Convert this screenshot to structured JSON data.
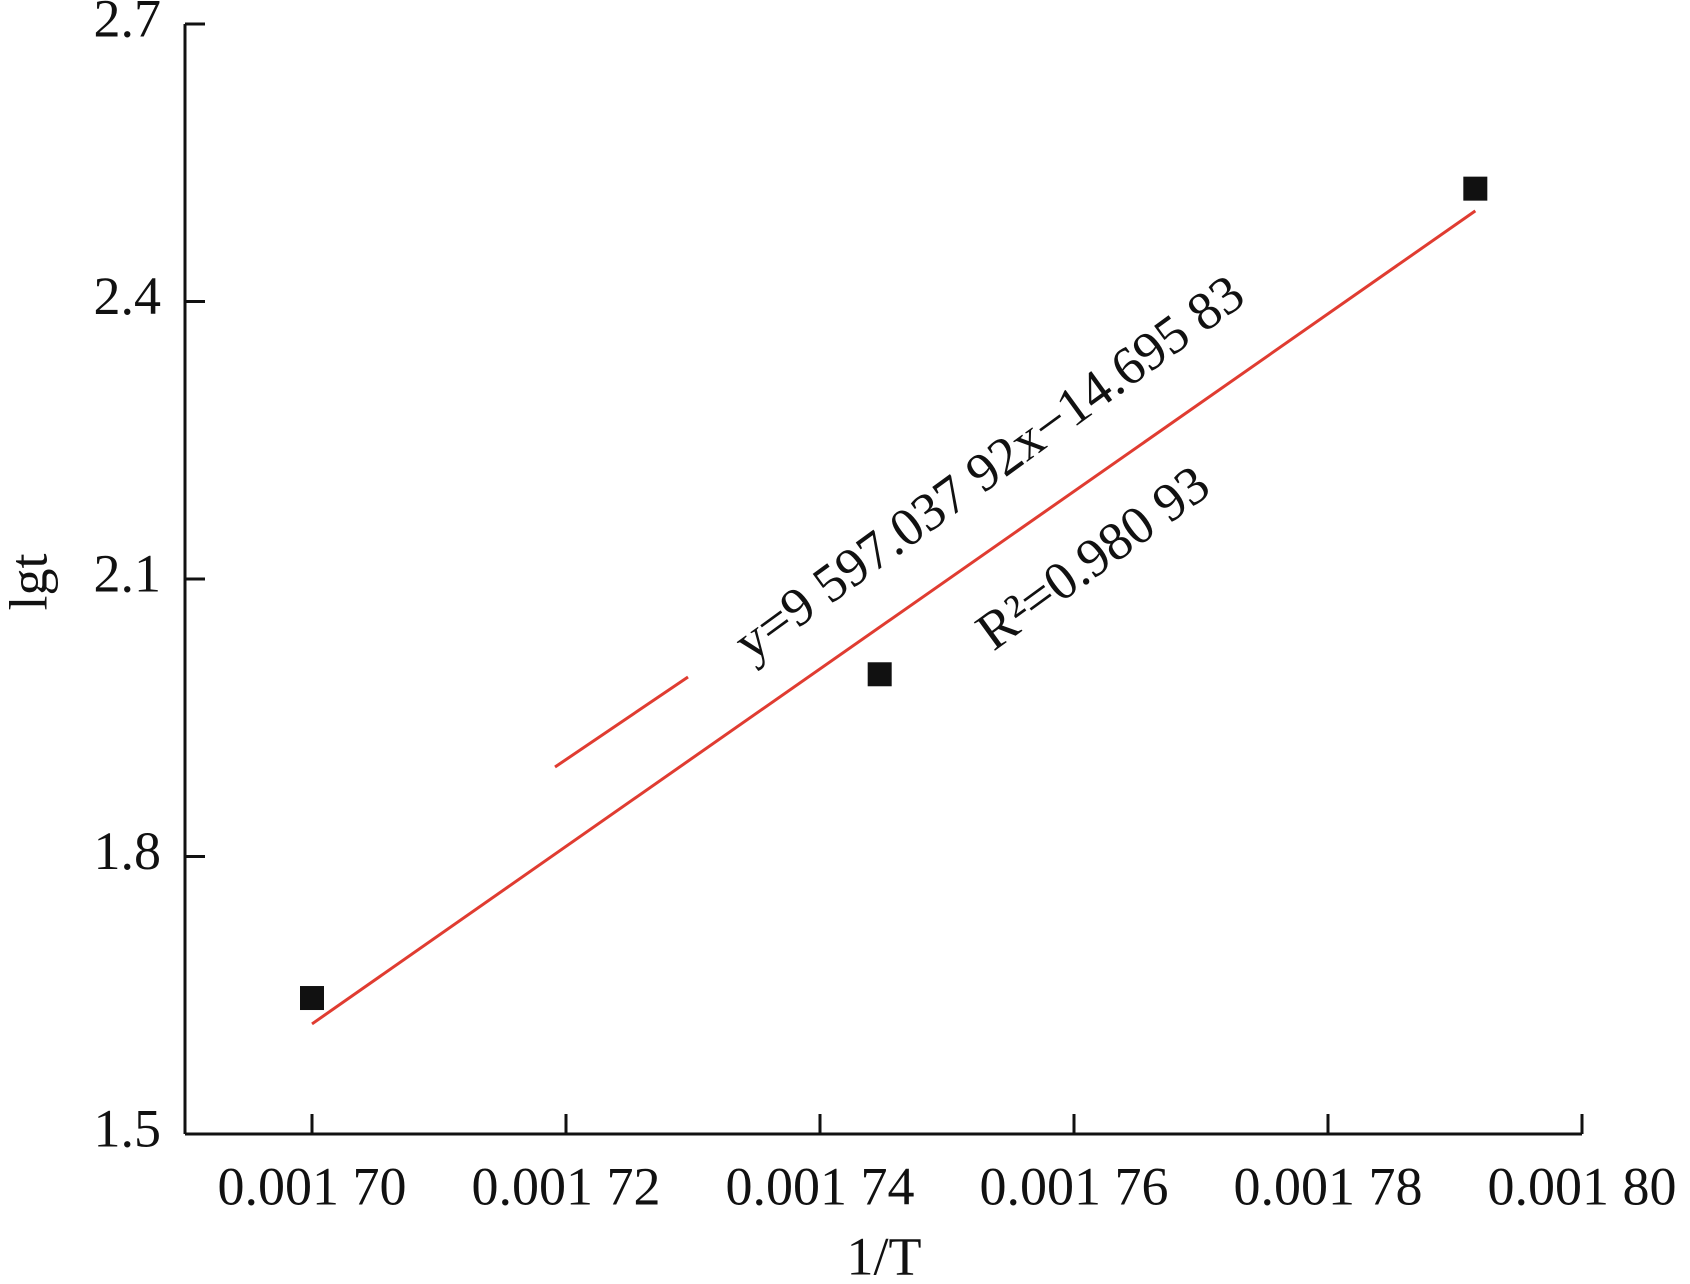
{
  "chart_data": {
    "type": "scatter",
    "xlabel": "1/T",
    "ylabel": "lgt",
    "xlim": [
      0.00169,
      0.0018
    ],
    "ylim": [
      1.5,
      2.7
    ],
    "xticks": [
      {
        "value": 0.0017,
        "label": "0.001 70"
      },
      {
        "value": 0.00172,
        "label": "0.001 72"
      },
      {
        "value": 0.00174,
        "label": "0.001 74"
      },
      {
        "value": 0.00176,
        "label": "0.001 76"
      },
      {
        "value": 0.00178,
        "label": "0.001 78"
      },
      {
        "value": 0.0018,
        "label": "0.001 80"
      }
    ],
    "yticks": [
      1.5,
      1.8,
      2.1,
      2.4,
      2.7
    ],
    "series": [
      {
        "mode": "markers",
        "color": "#111111",
        "x": [
          0.0017,
          0.0017447,
          0.0017916
        ],
        "values": [
          1.647,
          1.997,
          2.522
        ]
      },
      {
        "mode": "line",
        "color": "#e03c31",
        "x": [
          0.0017,
          0.0017916
        ],
        "values": [
          1.619,
          2.498
        ]
      }
    ],
    "annotations": [
      "y=9 597.037 92x−14.695 83",
      "R²=0.980 93"
    ]
  }
}
